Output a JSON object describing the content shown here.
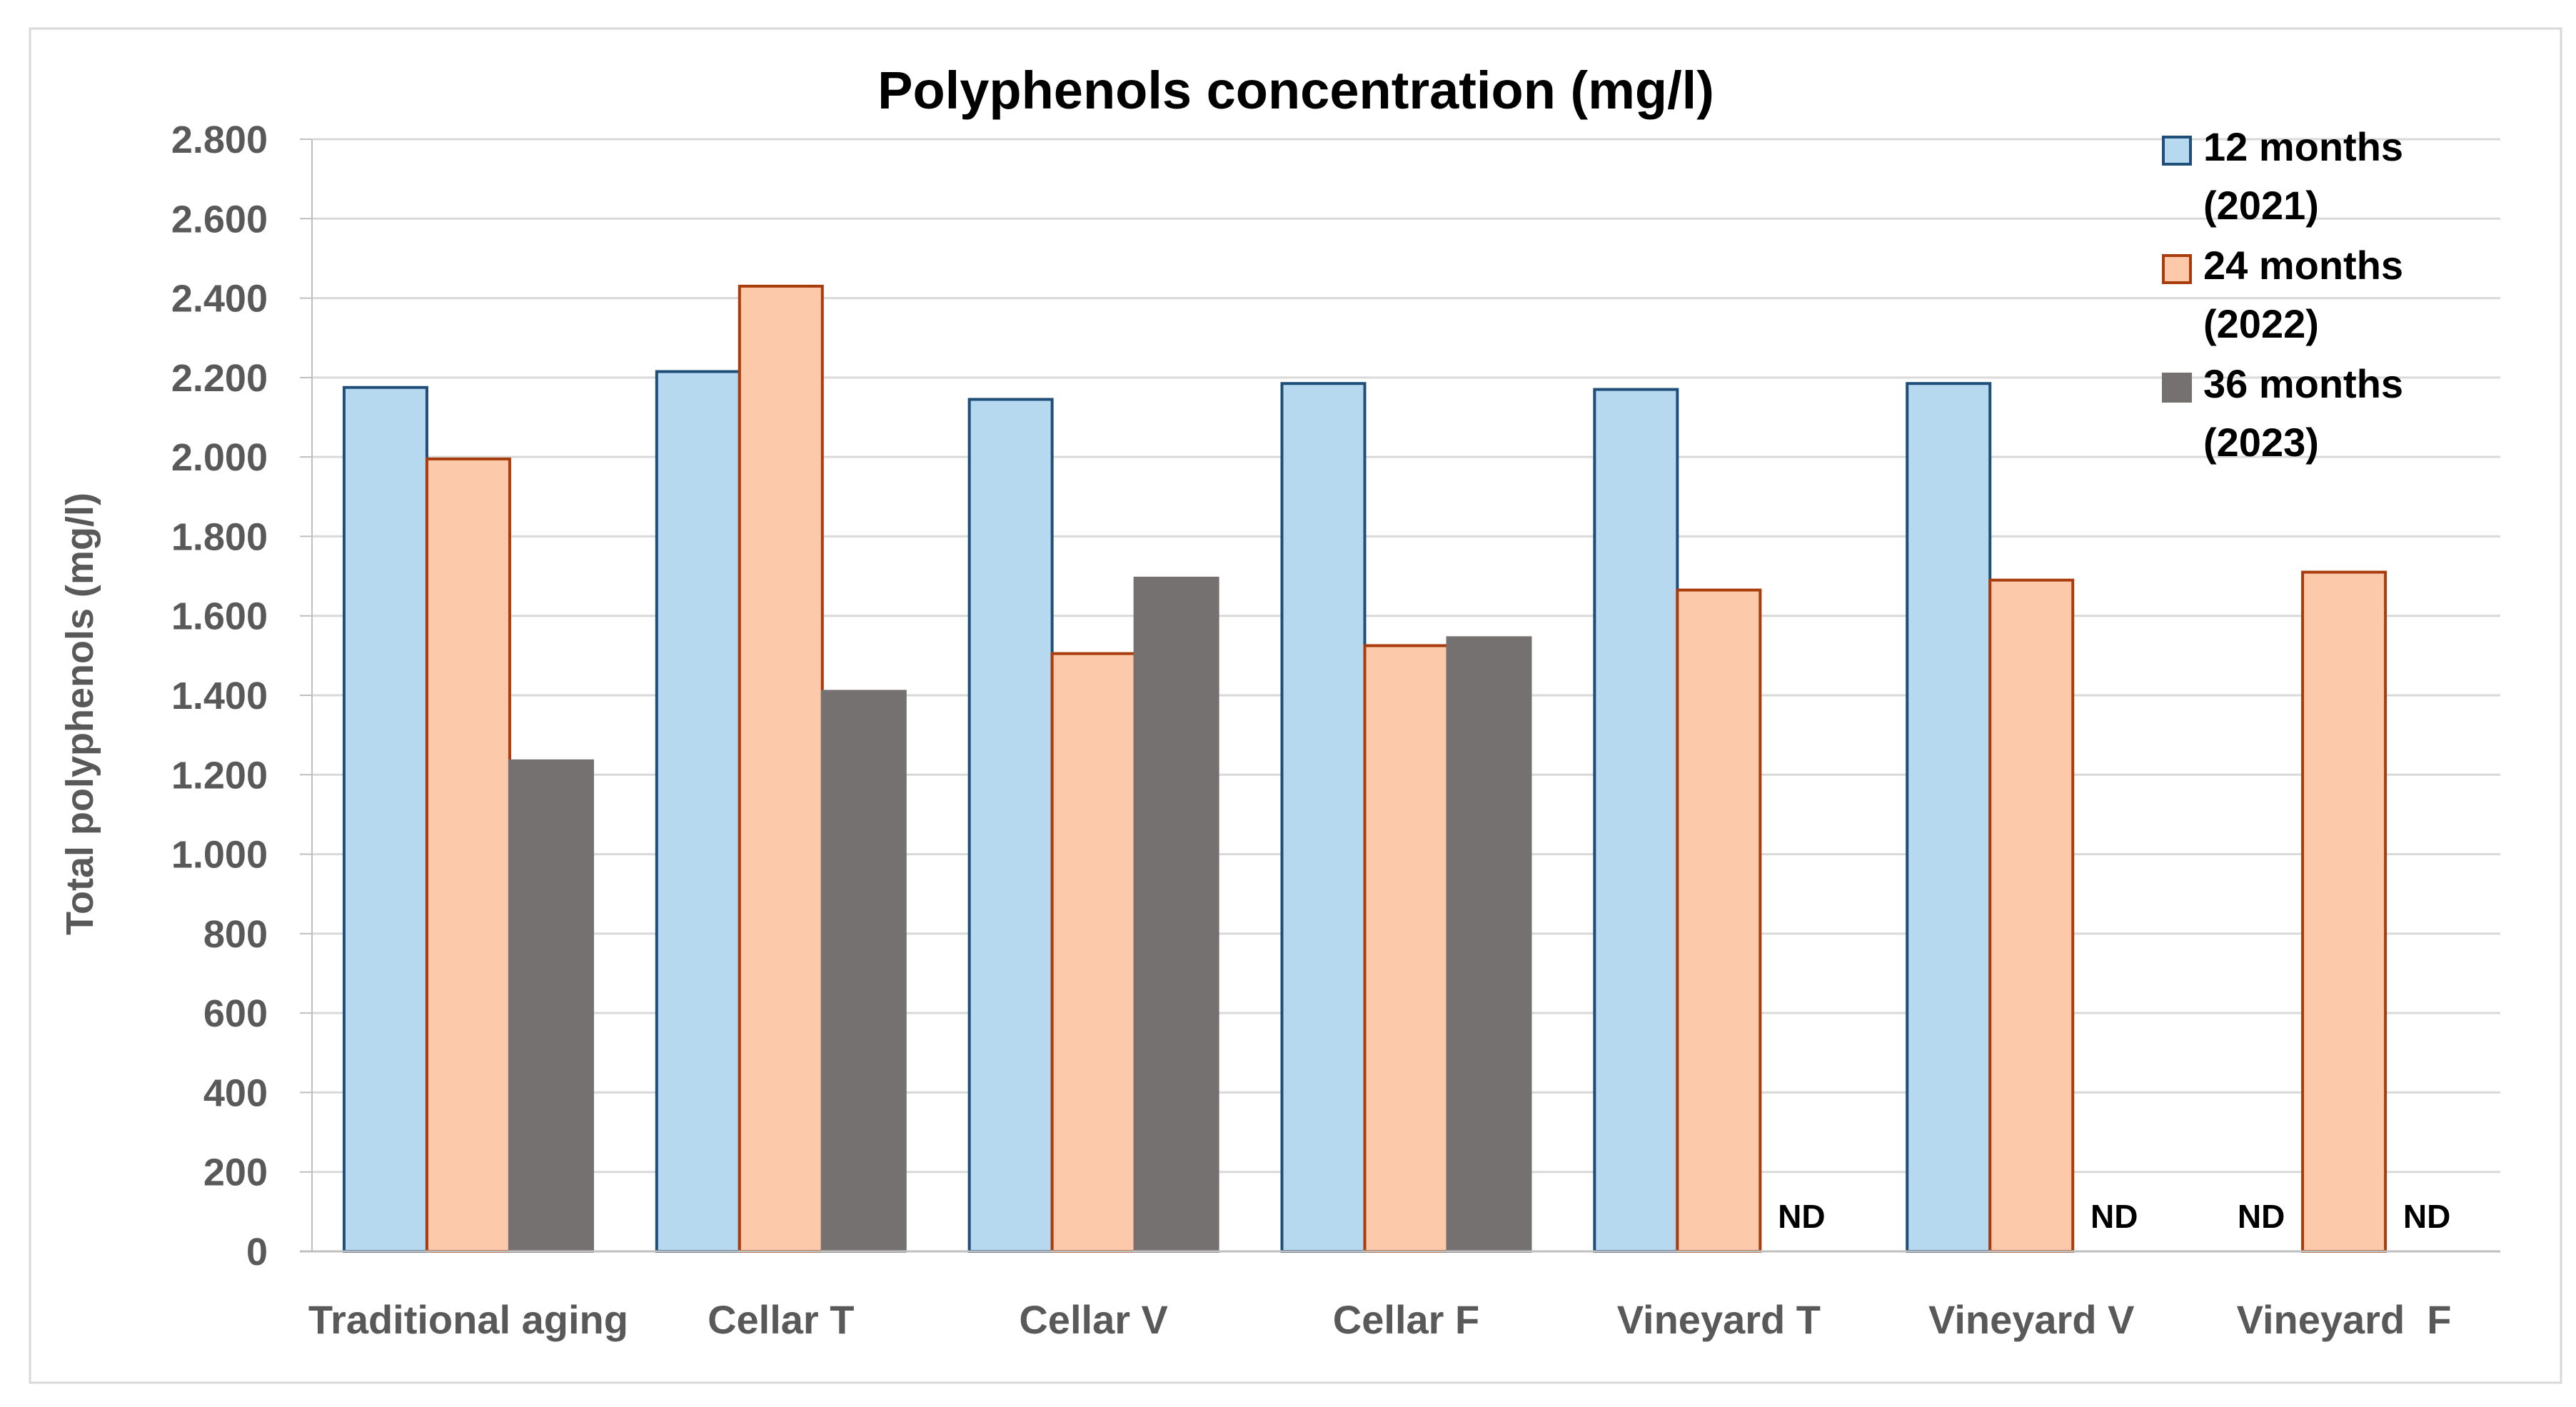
{
  "chart_data": {
    "type": "bar",
    "title": "Polyphenols concentration  (mg/l)",
    "xlabel": "",
    "ylabel": "Total polyphenols (mg/l)",
    "ylim": [
      0,
      2800
    ],
    "yticks": [
      0,
      200,
      400,
      600,
      800,
      1000,
      1200,
      1400,
      1600,
      1800,
      2000,
      2200,
      2400,
      2600,
      2800
    ],
    "ytick_labels": [
      "0",
      "200",
      "400",
      "600",
      "800",
      "1.000",
      "1.200",
      "1.400",
      "1.600",
      "1.800",
      "2.000",
      "2.200",
      "2.400",
      "2.600",
      "2.800"
    ],
    "grid": true,
    "legend_position": "top-right",
    "categories": [
      "Traditional aging",
      "Cellar T",
      "Cellar V",
      "Cellar F",
      "Vineyard T",
      "Vineyard V",
      "Vineyard  F"
    ],
    "series": [
      {
        "name": "12 months (2021)",
        "legend_line1": "12 months",
        "legend_line2": "(2021)",
        "fill": "#b7d9f0",
        "stroke": "#1f4e79",
        "values": [
          2175,
          2215,
          2145,
          2185,
          2170,
          2185,
          null
        ]
      },
      {
        "name": "24 months (2022)",
        "legend_line1": "24 months",
        "legend_line2": "(2022)",
        "fill": "#fcc9aa",
        "stroke": "#a83c0c",
        "values": [
          1995,
          2430,
          1505,
          1525,
          1665,
          1690,
          1710
        ]
      },
      {
        "name": "36 months (2023)",
        "legend_line1": "36 months",
        "legend_line2": "(2023)",
        "fill": "#767171",
        "stroke": "#767171",
        "values": [
          1235,
          1410,
          1695,
          1545,
          null,
          null,
          null
        ]
      }
    ],
    "missing_label": "ND"
  },
  "colors": {
    "grid": "#d9d9d9",
    "axis_text": "#595959",
    "title_text": "#000000"
  }
}
